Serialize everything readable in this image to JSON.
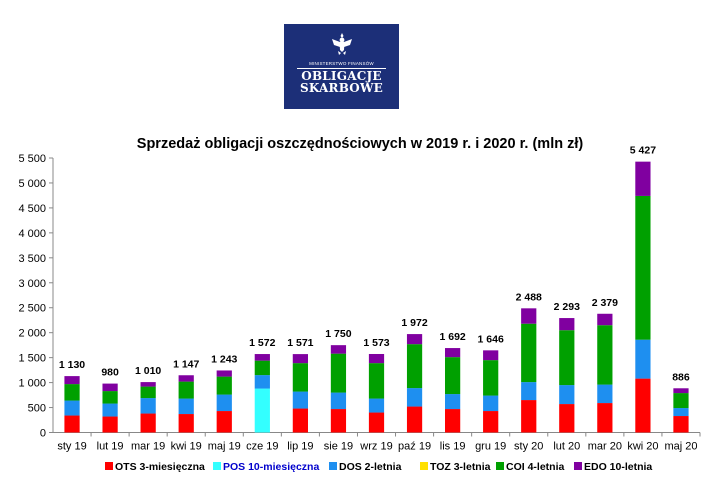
{
  "logo": {
    "ministry": "MINISTERSTWO FINANSÓW",
    "line1": "OBLIGACJE",
    "line2": "SKARBOWE"
  },
  "colors": {
    "logo_bg": "#1c2f78",
    "OTS": "#ff0000",
    "POS": "#33ffff",
    "DOS": "#1e8ff0",
    "TOZ": "#ffe000",
    "COI": "#00a000",
    "EDO": "#8000a0"
  },
  "chart_data": {
    "type": "bar",
    "stacked": true,
    "title": "Sprzedaż obligacji oszczędnościowych w 2019 r. i 2020 r. (mln zł)",
    "xlabel": "",
    "ylabel": "",
    "ylim": [
      0,
      5500
    ],
    "yticks": [
      0,
      500,
      1000,
      1500,
      2000,
      2500,
      3000,
      3500,
      4000,
      4500,
      5000,
      5500
    ],
    "ytick_labels": [
      "0",
      "500",
      "1 000",
      "1 500",
      "2 000",
      "2 500",
      "3 000",
      "3 500",
      "4 000",
      "4 500",
      "5 000",
      "5 500"
    ],
    "grid": false,
    "legend_position": "bottom",
    "categories": [
      "sty 19",
      "lut 19",
      "mar 19",
      "kwi 19",
      "maj 19",
      "cze 19",
      "lip 19",
      "sie 19",
      "wrz 19",
      "paź 19",
      "lis 19",
      "gru 19",
      "sty 20",
      "lut 20",
      "mar 20",
      "kwi 20",
      "maj 20"
    ],
    "totals": [
      1130,
      980,
      1010,
      1147,
      1243,
      1572,
      1571,
      1750,
      1573,
      1972,
      1692,
      1646,
      2488,
      2293,
      2379,
      5427,
      886
    ],
    "total_labels": [
      "1 130",
      "980",
      "1 010",
      "1 147",
      "1 243",
      "1 572",
      "1 571",
      "1 750",
      "1 573",
      "1 972",
      "1 692",
      "1 646",
      "2 488",
      "2 293",
      "2 379",
      "5 427",
      "886"
    ],
    "series": [
      {
        "name": "OTS 3-miesięczna",
        "key": "OTS",
        "values": [
          340,
          320,
          380,
          370,
          430,
          0,
          480,
          470,
          400,
          520,
          470,
          430,
          650,
          570,
          590,
          1080,
          330
        ]
      },
      {
        "name": "POS 10-miesięczna",
        "key": "POS",
        "values": [
          0,
          0,
          0,
          0,
          0,
          880,
          0,
          0,
          0,
          0,
          0,
          0,
          0,
          0,
          0,
          0,
          0
        ]
      },
      {
        "name": "DOS 2-letnia",
        "key": "DOS",
        "values": [
          300,
          260,
          310,
          310,
          330,
          270,
          340,
          330,
          280,
          370,
          300,
          310,
          360,
          380,
          370,
          780,
          160
        ]
      },
      {
        "name": "TOZ 3-letnia",
        "key": "TOZ",
        "values": [
          0,
          0,
          0,
          0,
          0,
          0,
          0,
          0,
          0,
          0,
          0,
          0,
          0,
          0,
          0,
          0,
          0
        ]
      },
      {
        "name": "COI 4-letnia",
        "key": "COI",
        "values": [
          330,
          250,
          230,
          340,
          360,
          290,
          570,
          780,
          710,
          880,
          740,
          710,
          1170,
          1100,
          1190,
          2880,
          300
        ]
      },
      {
        "name": "EDO 10-letnia",
        "key": "EDO",
        "values": [
          160,
          150,
          90,
          127,
          123,
          132,
          181,
          170,
          183,
          202,
          182,
          196,
          308,
          243,
          229,
          687,
          96
        ]
      }
    ]
  }
}
